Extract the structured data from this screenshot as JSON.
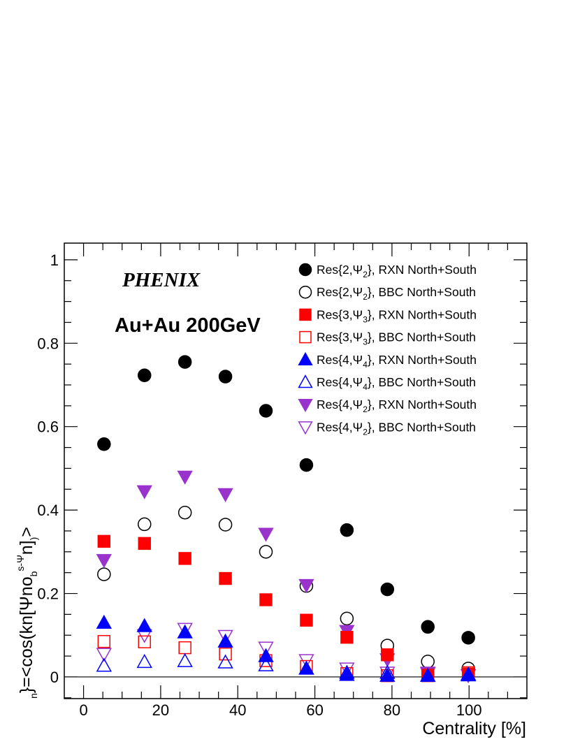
{
  "labels": {
    "experiment": "PHENIX",
    "system": "Au+Au 200GeV"
  },
  "chart_data": {
    "type": "scatter",
    "xlabel": "Centrality [%]",
    "ylabel": "Res{kn,Ψn}=<cos(kn[Ψnobs-Ψn])>",
    "xlim": [
      -5,
      115
    ],
    "ylim": [
      -0.052,
      1.04
    ],
    "x_ticks": [
      0,
      20,
      40,
      60,
      80,
      100
    ],
    "y_ticks": [
      0,
      0.2,
      0.4,
      0.6,
      0.8,
      1
    ],
    "x_tick_labels": [
      "0",
      "20",
      "40",
      "60",
      "80",
      "100"
    ],
    "y_tick_labels": [
      "0",
      "0.2",
      "0.4",
      "0.6",
      "0.8",
      "1"
    ],
    "grid": false,
    "legend_position": "top-right",
    "x": [
      5.3,
      15.8,
      26.3,
      36.8,
      47.3,
      57.8,
      68.3,
      78.8,
      89.3,
      99.8
    ],
    "series": [
      {
        "name": "Res{2,Ψ2}, RXN North+South",
        "marker": "circle",
        "filled": true,
        "color": "#000000",
        "values": [
          0.558,
          0.723,
          0.755,
          0.72,
          0.638,
          0.508,
          0.352,
          0.21,
          0.12,
          0.094
        ]
      },
      {
        "name": "Res{2,Ψ2}, BBC North+South",
        "marker": "circle",
        "filled": false,
        "color": "#000000",
        "values": [
          0.246,
          0.366,
          0.394,
          0.365,
          0.3,
          0.218,
          0.14,
          0.075,
          0.037,
          0.02
        ]
      },
      {
        "name": "Res{3,Ψ3}, RXN North+South",
        "marker": "square",
        "filled": true,
        "color": "#ff0000",
        "values": [
          0.325,
          0.32,
          0.284,
          0.236,
          0.185,
          0.136,
          0.095,
          0.053,
          0.004,
          0.007
        ]
      },
      {
        "name": "Res{3,Ψ3}, BBC North+South",
        "marker": "square",
        "filled": false,
        "color": "#ff0000",
        "values": [
          0.085,
          0.084,
          0.07,
          0.055,
          0.039,
          0.025,
          0.008,
          0.003,
          0.003,
          0.01
        ]
      },
      {
        "name": "Res{4,Ψ4}, RXN North+South",
        "marker": "triangle-up",
        "filled": true,
        "color": "#0000ff",
        "values": [
          0.13,
          0.122,
          0.107,
          0.085,
          0.05,
          0.02,
          0.005,
          0.003,
          0.003,
          0.004
        ]
      },
      {
        "name": "Res{4,Ψ4}, BBC North+South",
        "marker": "triangle-up",
        "filled": false,
        "color": "#0000ff",
        "values": [
          0.027,
          0.036,
          0.038,
          0.035,
          0.028,
          0.02,
          0.01,
          0.01,
          0.003,
          0.006
        ]
      },
      {
        "name": "Res{4,Ψ2}, RXN North+South",
        "marker": "triangle-down",
        "filled": true,
        "color": "#9933cc",
        "values": [
          0.28,
          0.445,
          0.48,
          0.438,
          0.343,
          0.22,
          0.11,
          0.042,
          0.01,
          0.004
        ]
      },
      {
        "name": "Res{4,Ψ2}, BBC North+South",
        "marker": "triangle-down",
        "filled": false,
        "color": "#9933cc",
        "values": [
          0.055,
          0.1,
          0.115,
          0.098,
          0.07,
          0.04,
          0.02,
          0.01,
          0.008,
          0.004
        ]
      }
    ]
  }
}
